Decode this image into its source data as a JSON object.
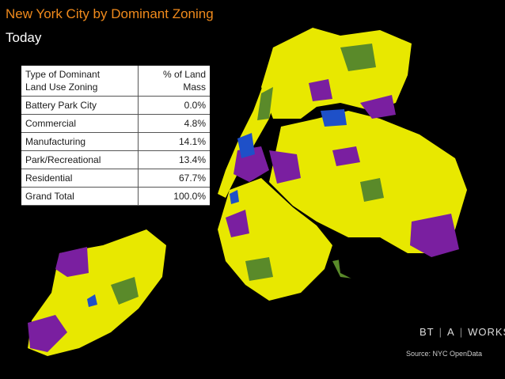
{
  "title": "New York City by Dominant Zoning",
  "subtitle": "Today",
  "table": {
    "header": {
      "type": "Type of Dominant Land Use Zoning",
      "type_line1": "Type of Dominant",
      "type_line2": "Land Use Zoning",
      "pct_line1": "% of Land",
      "pct_line2": "Mass"
    },
    "rows": [
      {
        "label": "Battery Park City",
        "value": "0.0%"
      },
      {
        "label": "Commercial",
        "value": "4.8%"
      },
      {
        "label": "Manufacturing",
        "value": "14.1%"
      },
      {
        "label": "Park/Recreational",
        "value": "13.4%"
      },
      {
        "label": "Residential",
        "value": "67.7%"
      },
      {
        "label": "Grand Total",
        "value": "100.0%"
      }
    ]
  },
  "legend_colors": {
    "residential": "#e8e800",
    "manufacturing": "#7a1fa0",
    "park": "#5a8a2a",
    "commercial": "#1e50c8",
    "water": "#000000"
  },
  "logo": {
    "part1": "BT",
    "part2": "A",
    "part3": "WORKS"
  },
  "source": "Source: NYC OpenData"
}
